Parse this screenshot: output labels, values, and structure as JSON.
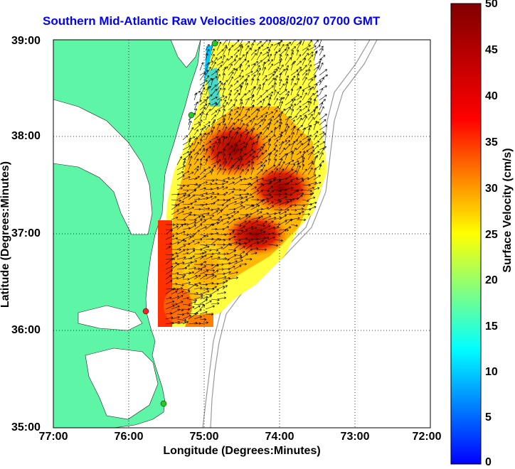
{
  "title": "Southern Mid-Atlantic Raw Velocities 2008/02/07 0700 GMT",
  "xlabel": "Longitude (Degrees:Minutes)",
  "ylabel": "Latitude (Degrees:Minutes)",
  "colorbar_label": "Surface Velocity (cm/s)",
  "x_ticks": [
    "77:00",
    "76:00",
    "75:00",
    "74:00",
    "73:00",
    "72:00"
  ],
  "y_ticks": [
    "39:00",
    "38:00",
    "37:00",
    "36:00",
    "35:00"
  ],
  "colorbar_ticks": [
    "50",
    "45",
    "40",
    "35",
    "30",
    "25",
    "20",
    "15",
    "10",
    "5",
    "0"
  ],
  "colors": {
    "land": "#5ef5a6",
    "shelf_contour": "#999999",
    "title": "#0000ff",
    "grid": "#000000"
  },
  "chart_data": {
    "type": "heatmap",
    "title": "Southern Mid-Atlantic Raw Velocities 2008/02/07 0700 GMT",
    "xlabel": "Longitude (Degrees:Minutes)",
    "ylabel": "Latitude (Degrees:Minutes)",
    "xlim": [
      -77.0,
      -72.0
    ],
    "ylim": [
      35.0,
      39.0
    ],
    "colorbar": {
      "label": "Surface Velocity (cm/s)",
      "range": [
        0,
        50
      ],
      "colormap": "jet"
    },
    "grid": true,
    "stations": [
      {
        "lon": -74.85,
        "lat": 38.98,
        "color": "green"
      },
      {
        "lon": -75.15,
        "lat": 38.22,
        "color": "green"
      },
      {
        "lon": -75.75,
        "lat": 36.2,
        "color": "red"
      },
      {
        "lon": -75.55,
        "lat": 35.25,
        "color": "green"
      }
    ]
  }
}
